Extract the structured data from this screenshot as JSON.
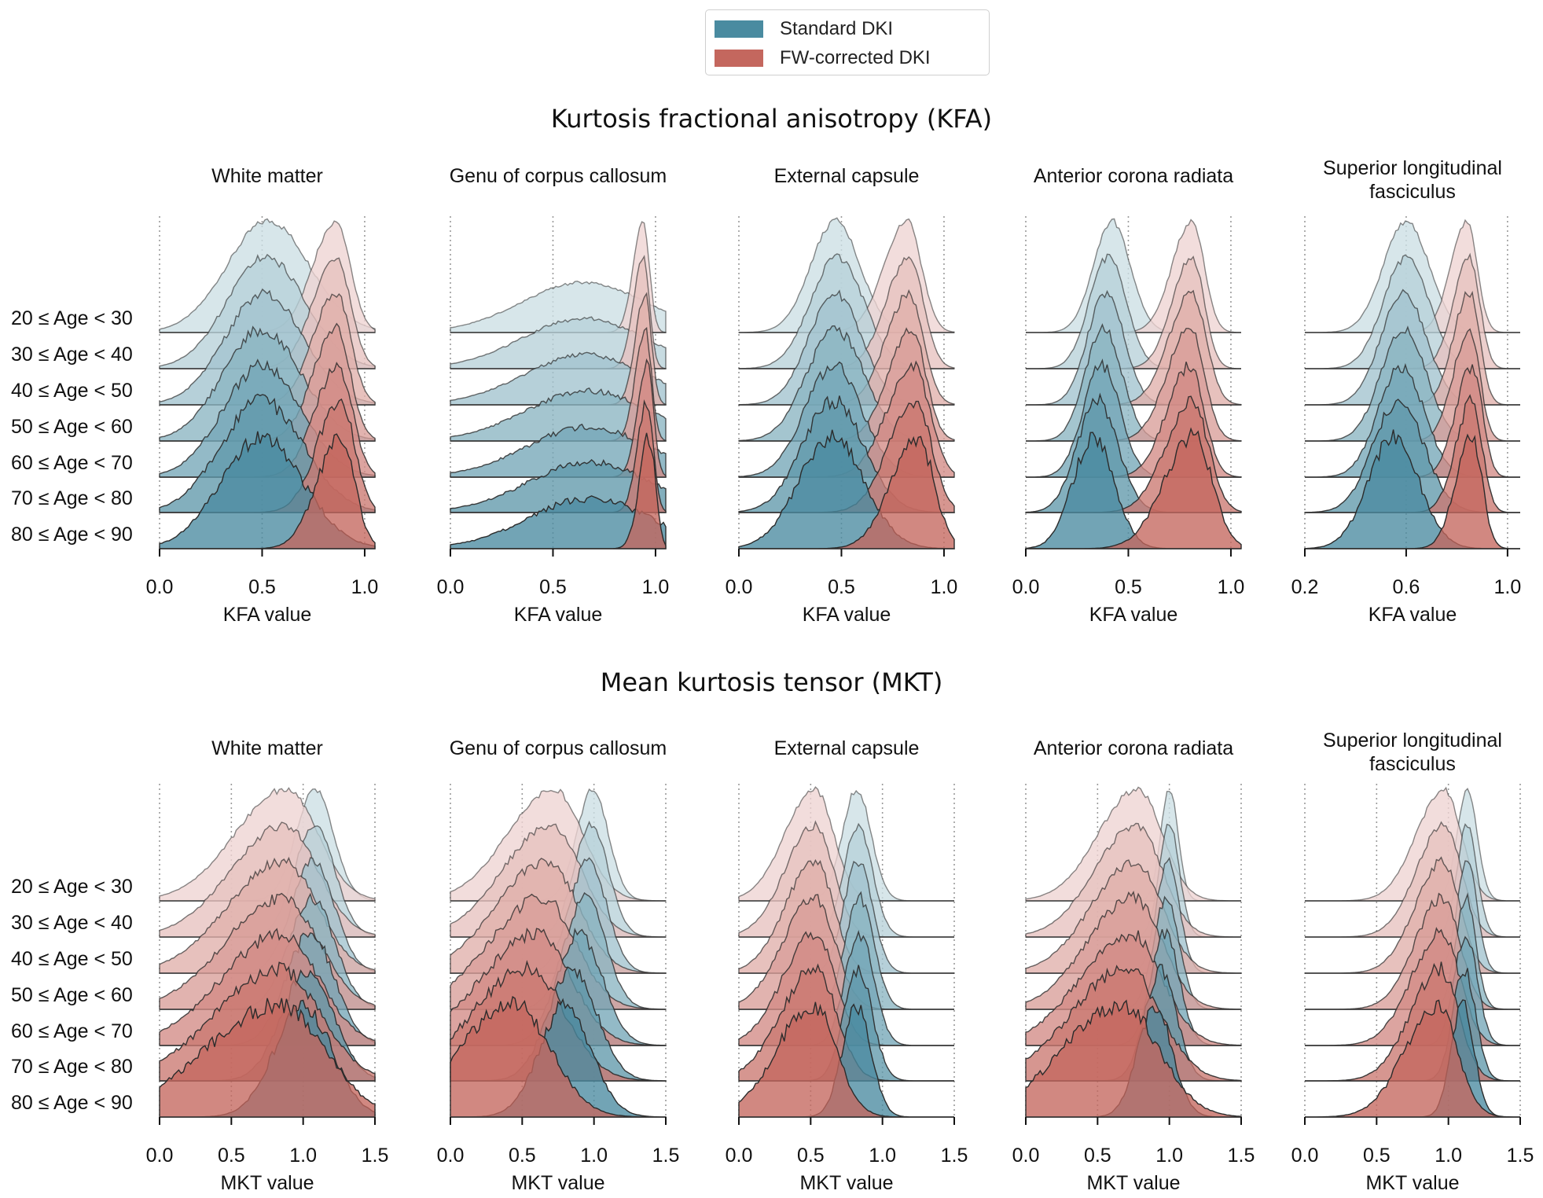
{
  "legend": {
    "standard": {
      "label": "Standard DKI",
      "color": "#4a8ba0"
    },
    "fw": {
      "label": "FW-corrected DKI",
      "color": "#c4675e"
    }
  },
  "age_groups": [
    "20 ≤ Age < 30",
    "30 ≤ Age < 40",
    "40 ≤ Age < 50",
    "50 ≤ Age < 60",
    "60 ≤ Age < 70",
    "70 ≤ Age < 80",
    "80 ≤ Age < 90"
  ],
  "sections": [
    {
      "title": "Kurtosis fractional anisotropy (KFA)",
      "xlabel": "KFA value"
    },
    {
      "title": "Mean kurtosis tensor (MKT)",
      "xlabel": "MKT value"
    }
  ],
  "chart_data": [
    {
      "type": "ridgeline",
      "section": "Kurtosis fractional anisotropy (KFA)",
      "title": "White matter",
      "xlabel": "KFA value",
      "xlim": [
        0,
        1.05
      ],
      "xticks": [
        0,
        0.5,
        1.0
      ],
      "xtick_labels": [
        "0.0",
        "0.5",
        "1.0"
      ],
      "series": [
        {
          "name": "Standard DKI",
          "peaks": [
            0.53,
            0.52,
            0.51,
            0.5,
            0.5,
            0.5,
            0.5
          ],
          "widths": [
            0.2,
            0.19,
            0.19,
            0.19,
            0.19,
            0.2,
            0.2
          ]
        },
        {
          "name": "FW-corrected DKI",
          "peaks": [
            0.86,
            0.86,
            0.86,
            0.86,
            0.87,
            0.88,
            0.88
          ],
          "widths": [
            0.07,
            0.07,
            0.07,
            0.07,
            0.07,
            0.07,
            0.07
          ]
        }
      ]
    },
    {
      "type": "ridgeline",
      "section": "Kurtosis fractional anisotropy (KFA)",
      "title": "Genu of corpus callosum",
      "xlabel": "KFA value",
      "xlim": [
        0,
        1.05
      ],
      "xticks": [
        0,
        0.5,
        1.0
      ],
      "xtick_labels": [
        "0.0",
        "0.5",
        "1.0"
      ],
      "series": [
        {
          "name": "Standard DKI",
          "peaks": [
            0.65,
            0.65,
            0.66,
            0.67,
            0.67,
            0.68,
            0.68
          ],
          "widths": [
            0.3,
            0.3,
            0.3,
            0.3,
            0.3,
            0.3,
            0.3
          ]
        },
        {
          "name": "FW-corrected DKI",
          "peaks": [
            0.94,
            0.94,
            0.95,
            0.95,
            0.96,
            0.96,
            0.97
          ],
          "widths": [
            0.03,
            0.03,
            0.03,
            0.03,
            0.03,
            0.03,
            0.03
          ]
        }
      ]
    },
    {
      "type": "ridgeline",
      "section": "Kurtosis fractional anisotropy (KFA)",
      "title": "External capsule",
      "xlabel": "KFA value",
      "xlim": [
        0,
        1.05
      ],
      "xticks": [
        0,
        0.5,
        1.0
      ],
      "xtick_labels": [
        "0.0",
        "0.5",
        "1.0"
      ],
      "series": [
        {
          "name": "Standard DKI",
          "peaks": [
            0.47,
            0.48,
            0.47,
            0.47,
            0.46,
            0.46,
            0.45
          ],
          "widths": [
            0.12,
            0.13,
            0.13,
            0.14,
            0.14,
            0.15,
            0.16
          ]
        },
        {
          "name": "FW-corrected DKI",
          "peaks": [
            0.82,
            0.83,
            0.83,
            0.84,
            0.85,
            0.86,
            0.87
          ],
          "widths": [
            0.07,
            0.07,
            0.07,
            0.07,
            0.08,
            0.08,
            0.08
          ]
        }
      ]
    },
    {
      "type": "ridgeline",
      "section": "Kurtosis fractional anisotropy (KFA)",
      "title": "Anterior corona radiata",
      "xlabel": "KFA value",
      "xlim": [
        0,
        1.05
      ],
      "xticks": [
        0,
        0.5,
        1.0
      ],
      "xtick_labels": [
        "0.0",
        "0.5",
        "1.0"
      ],
      "series": [
        {
          "name": "Standard DKI",
          "peaks": [
            0.42,
            0.4,
            0.39,
            0.38,
            0.37,
            0.35,
            0.33
          ],
          "widths": [
            0.09,
            0.09,
            0.09,
            0.09,
            0.09,
            0.1,
            0.1
          ]
        },
        {
          "name": "FW-corrected DKI",
          "peaks": [
            0.81,
            0.81,
            0.81,
            0.8,
            0.8,
            0.81,
            0.82
          ],
          "widths": [
            0.06,
            0.06,
            0.07,
            0.07,
            0.07,
            0.08,
            0.09
          ]
        }
      ]
    },
    {
      "type": "ridgeline",
      "section": "Kurtosis fractional anisotropy (KFA)",
      "title": "Superior longitudinal fasciculus",
      "xlabel": "KFA value",
      "xlim": [
        0.2,
        1.05
      ],
      "xticks": [
        0.2,
        0.6,
        1.0
      ],
      "xtick_labels": [
        "0.2",
        "0.6",
        "1.0"
      ],
      "series": [
        {
          "name": "Standard DKI",
          "peaks": [
            0.6,
            0.6,
            0.59,
            0.59,
            0.58,
            0.57,
            0.55
          ],
          "widths": [
            0.09,
            0.09,
            0.09,
            0.09,
            0.09,
            0.1,
            0.1
          ]
        },
        {
          "name": "FW-corrected DKI",
          "peaks": [
            0.84,
            0.85,
            0.85,
            0.85,
            0.86,
            0.86,
            0.86
          ],
          "widths": [
            0.04,
            0.04,
            0.04,
            0.04,
            0.04,
            0.04,
            0.04
          ]
        }
      ]
    },
    {
      "type": "ridgeline",
      "section": "Mean kurtosis tensor (MKT)",
      "title": "White matter",
      "xlabel": "MKT value",
      "xlim": [
        0,
        1.5
      ],
      "xticks": [
        0,
        0.5,
        1.0,
        1.5
      ],
      "xtick_labels": [
        "0.0",
        "0.5",
        "1.0",
        "1.5"
      ],
      "series": [
        {
          "name": "Standard DKI",
          "peaks": [
            1.08,
            1.08,
            1.07,
            1.06,
            1.05,
            1.03,
            1.0
          ],
          "widths": [
            0.13,
            0.14,
            0.15,
            0.16,
            0.17,
            0.18,
            0.2
          ]
        },
        {
          "name": "FW-corrected DKI",
          "peaks": [
            0.88,
            0.87,
            0.86,
            0.86,
            0.85,
            0.84,
            0.83
          ],
          "widths": [
            0.22,
            0.23,
            0.24,
            0.25,
            0.26,
            0.28,
            0.32
          ]
        }
      ]
    },
    {
      "type": "ridgeline",
      "section": "Mean kurtosis tensor (MKT)",
      "title": "Genu of corpus callosum",
      "xlabel": "MKT value",
      "xlim": [
        0,
        1.5
      ],
      "xticks": [
        0,
        0.5,
        1.0,
        1.5
      ],
      "xtick_labels": [
        "0.0",
        "0.5",
        "1.0",
        "1.5"
      ],
      "series": [
        {
          "name": "Standard DKI",
          "peaks": [
            0.99,
            0.98,
            0.96,
            0.94,
            0.9,
            0.85,
            0.8
          ],
          "widths": [
            0.11,
            0.12,
            0.13,
            0.14,
            0.16,
            0.17,
            0.18
          ]
        },
        {
          "name": "FW-corrected DKI",
          "peaks": [
            0.72,
            0.7,
            0.67,
            0.64,
            0.6,
            0.55,
            0.45
          ],
          "widths": [
            0.2,
            0.21,
            0.22,
            0.23,
            0.24,
            0.25,
            0.25
          ]
        }
      ]
    },
    {
      "type": "ridgeline",
      "section": "Mean kurtosis tensor (MKT)",
      "title": "External capsule",
      "xlabel": "MKT value",
      "xlim": [
        0,
        1.5
      ],
      "xticks": [
        0,
        0.5,
        1.0,
        1.5
      ],
      "xtick_labels": [
        "0.0",
        "0.5",
        "1.0",
        "1.5"
      ],
      "series": [
        {
          "name": "Standard DKI",
          "peaks": [
            0.82,
            0.83,
            0.83,
            0.84,
            0.84,
            0.83,
            0.82
          ],
          "widths": [
            0.1,
            0.1,
            0.1,
            0.1,
            0.1,
            0.1,
            0.1
          ]
        },
        {
          "name": "FW-corrected DKI",
          "peaks": [
            0.53,
            0.53,
            0.53,
            0.53,
            0.53,
            0.53,
            0.52
          ],
          "widths": [
            0.13,
            0.13,
            0.13,
            0.14,
            0.14,
            0.15,
            0.16
          ]
        }
      ]
    },
    {
      "type": "ridgeline",
      "section": "Mean kurtosis tensor (MKT)",
      "title": "Anterior corona radiata",
      "xlabel": "MKT value",
      "xlim": [
        0,
        1.5
      ],
      "xticks": [
        0,
        0.5,
        1.0,
        1.5
      ],
      "xtick_labels": [
        "0.0",
        "0.5",
        "1.0",
        "1.5"
      ],
      "series": [
        {
          "name": "Standard DKI",
          "peaks": [
            1.0,
            1.0,
            0.99,
            0.98,
            0.97,
            0.94,
            0.9
          ],
          "widths": [
            0.06,
            0.07,
            0.08,
            0.09,
            0.1,
            0.11,
            0.12
          ]
        },
        {
          "name": "FW-corrected DKI",
          "peaks": [
            0.78,
            0.77,
            0.76,
            0.75,
            0.73,
            0.7,
            0.67
          ],
          "widths": [
            0.17,
            0.18,
            0.19,
            0.2,
            0.22,
            0.24,
            0.26
          ]
        }
      ]
    },
    {
      "type": "ridgeline",
      "section": "Mean kurtosis tensor (MKT)",
      "title": "Superior longitudinal fasciculus",
      "xlabel": "MKT value",
      "xlim": [
        0,
        1.5
      ],
      "xticks": [
        0,
        0.5,
        1.0,
        1.5
      ],
      "xtick_labels": [
        "0.0",
        "0.5",
        "1.0",
        "1.5"
      ],
      "series": [
        {
          "name": "Standard DKI",
          "peaks": [
            1.13,
            1.13,
            1.13,
            1.12,
            1.12,
            1.11,
            1.1
          ],
          "widths": [
            0.07,
            0.07,
            0.07,
            0.07,
            0.08,
            0.08,
            0.08
          ]
        },
        {
          "name": "FW-corrected DKI",
          "peaks": [
            0.97,
            0.97,
            0.96,
            0.96,
            0.95,
            0.94,
            0.92
          ],
          "widths": [
            0.12,
            0.12,
            0.12,
            0.12,
            0.13,
            0.13,
            0.14
          ]
        }
      ]
    }
  ]
}
